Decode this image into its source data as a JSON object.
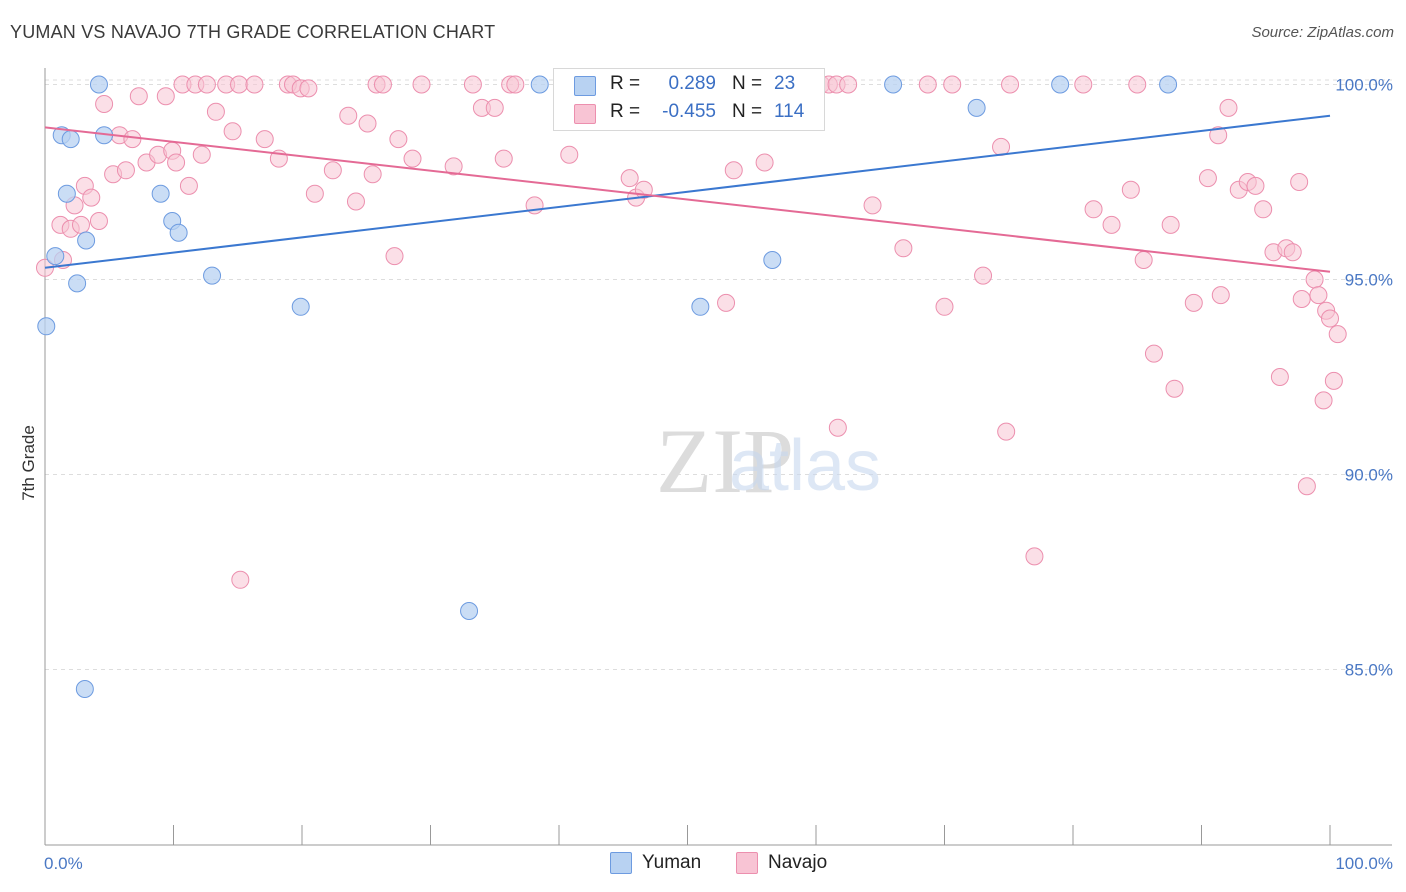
{
  "header": {
    "title": "YUMAN VS NAVAJO 7TH GRADE CORRELATION CHART",
    "source": "Source: ZipAtlas.com"
  },
  "watermark": {
    "zip": "ZIP",
    "atlas": "atlas"
  },
  "colors": {
    "yuman_fill": "#b8d2f2",
    "yuman_stroke": "#6d9be0",
    "yuman_line": "#3b78d0",
    "navajo_fill": "#f8c4d4",
    "navajo_stroke": "#ec8fae",
    "navajo_line": "#e46a95",
    "tick_text": "#4a78c4",
    "grid": "#dddddd"
  },
  "legend": {
    "rows": [
      {
        "series": "Yuman",
        "r_label": "R =",
        "r_value": "0.289",
        "n_label": "N =",
        "n_value": "23"
      },
      {
        "series": "Navajo",
        "r_label": "R =",
        "r_value": "-0.455",
        "n_label": "N =",
        "n_value": "114"
      }
    ]
  },
  "bottom_legend": [
    "Yuman",
    "Navajo"
  ],
  "chart_data": {
    "type": "scatter",
    "title": "YUMAN VS NAVAJO 7TH GRADE CORRELATION CHART",
    "xlabel": "",
    "ylabel": "7th Grade",
    "xlim": [
      0,
      100
    ],
    "ylim": [
      80.5,
      100.5
    ],
    "x_tick_labels": [
      "0.0%",
      "100.0%"
    ],
    "y_ticks": [
      85,
      90,
      95,
      100
    ],
    "y_tick_labels": [
      "85.0%",
      "90.0%",
      "95.0%",
      "100.0%"
    ],
    "grid": "horizontal dashed",
    "legend_position": "top-center",
    "series": [
      {
        "name": "Yuman",
        "R": 0.289,
        "N": 23,
        "trend": {
          "x": [
            0,
            100
          ],
          "y": [
            95.3,
            99.2
          ]
        },
        "points": [
          [
            0.1,
            93.8
          ],
          [
            0.8,
            95.6
          ],
          [
            1.3,
            98.7
          ],
          [
            1.7,
            97.2
          ],
          [
            2.0,
            98.6
          ],
          [
            2.5,
            94.9
          ],
          [
            3.2,
            96.0
          ],
          [
            3.1,
            84.5
          ],
          [
            4.2,
            100.0
          ],
          [
            4.6,
            98.7
          ],
          [
            9.0,
            97.2
          ],
          [
            9.9,
            96.5
          ],
          [
            10.4,
            96.2
          ],
          [
            13.0,
            95.1
          ],
          [
            19.9,
            94.3
          ],
          [
            33.0,
            86.5
          ],
          [
            38.5,
            100.0
          ],
          [
            51.0,
            94.3
          ],
          [
            56.6,
            95.5
          ],
          [
            66.0,
            100.0
          ],
          [
            72.5,
            99.4
          ],
          [
            79.0,
            100.0
          ],
          [
            87.4,
            100.0
          ]
        ]
      },
      {
        "name": "Navajo",
        "R": -0.455,
        "N": 114,
        "trend": {
          "x": [
            0,
            100
          ],
          "y": [
            98.9,
            95.2
          ]
        },
        "points": [
          [
            0.0,
            95.3
          ],
          [
            1.2,
            96.4
          ],
          [
            1.4,
            95.5
          ],
          [
            2.0,
            96.3
          ],
          [
            2.3,
            96.9
          ],
          [
            2.8,
            96.4
          ],
          [
            3.1,
            97.4
          ],
          [
            3.6,
            97.1
          ],
          [
            4.2,
            96.5
          ],
          [
            4.6,
            99.5
          ],
          [
            5.3,
            97.7
          ],
          [
            5.8,
            98.7
          ],
          [
            6.3,
            97.8
          ],
          [
            6.8,
            98.6
          ],
          [
            7.3,
            99.7
          ],
          [
            7.9,
            98.0
          ],
          [
            8.8,
            98.2
          ],
          [
            9.4,
            99.7
          ],
          [
            9.9,
            98.3
          ],
          [
            10.2,
            98.0
          ],
          [
            10.7,
            100.0
          ],
          [
            11.2,
            97.4
          ],
          [
            11.7,
            100.0
          ],
          [
            12.2,
            98.2
          ],
          [
            12.6,
            100.0
          ],
          [
            13.3,
            99.3
          ],
          [
            14.1,
            100.0
          ],
          [
            14.6,
            98.8
          ],
          [
            15.1,
            100.0
          ],
          [
            15.2,
            87.3
          ],
          [
            16.3,
            100.0
          ],
          [
            17.1,
            98.6
          ],
          [
            18.2,
            98.1
          ],
          [
            18.9,
            100.0
          ],
          [
            19.3,
            100.0
          ],
          [
            19.9,
            99.9
          ],
          [
            20.5,
            99.9
          ],
          [
            21.0,
            97.2
          ],
          [
            22.4,
            97.8
          ],
          [
            23.6,
            99.2
          ],
          [
            24.2,
            97.0
          ],
          [
            25.1,
            99.0
          ],
          [
            25.5,
            97.7
          ],
          [
            25.8,
            100.0
          ],
          [
            26.3,
            100.0
          ],
          [
            27.2,
            95.6
          ],
          [
            27.5,
            98.6
          ],
          [
            28.6,
            98.1
          ],
          [
            29.3,
            100.0
          ],
          [
            31.8,
            97.9
          ],
          [
            33.3,
            100.0
          ],
          [
            34.0,
            99.4
          ],
          [
            35.0,
            99.4
          ],
          [
            35.7,
            98.1
          ],
          [
            36.2,
            100.0
          ],
          [
            36.6,
            100.0
          ],
          [
            38.1,
            96.9
          ],
          [
            40.8,
            98.2
          ],
          [
            43.7,
            100.0
          ],
          [
            45.5,
            97.6
          ],
          [
            46.0,
            97.1
          ],
          [
            46.6,
            97.3
          ],
          [
            48.6,
            100.0
          ],
          [
            52.7,
            100.0
          ],
          [
            53.0,
            94.4
          ],
          [
            53.6,
            97.8
          ],
          [
            56.0,
            98.0
          ],
          [
            60.4,
            100.0
          ],
          [
            61.0,
            100.0
          ],
          [
            61.6,
            100.0
          ],
          [
            61.7,
            91.2
          ],
          [
            62.5,
            100.0
          ],
          [
            64.4,
            96.9
          ],
          [
            66.8,
            95.8
          ],
          [
            68.7,
            100.0
          ],
          [
            70.0,
            94.3
          ],
          [
            70.6,
            100.0
          ],
          [
            73.0,
            95.1
          ],
          [
            74.4,
            98.4
          ],
          [
            74.8,
            91.1
          ],
          [
            75.1,
            100.0
          ],
          [
            77.0,
            87.9
          ],
          [
            80.8,
            100.0
          ],
          [
            81.6,
            96.8
          ],
          [
            83.0,
            96.4
          ],
          [
            84.5,
            97.3
          ],
          [
            85.0,
            100.0
          ],
          [
            85.5,
            95.5
          ],
          [
            86.3,
            93.1
          ],
          [
            87.6,
            96.4
          ],
          [
            87.9,
            92.2
          ],
          [
            89.4,
            94.4
          ],
          [
            90.5,
            97.6
          ],
          [
            91.3,
            98.7
          ],
          [
            91.5,
            94.6
          ],
          [
            92.1,
            99.4
          ],
          [
            92.9,
            97.3
          ],
          [
            93.6,
            97.5
          ],
          [
            94.2,
            97.4
          ],
          [
            94.8,
            96.8
          ],
          [
            95.6,
            95.7
          ],
          [
            96.1,
            92.5
          ],
          [
            96.6,
            95.8
          ],
          [
            97.1,
            95.7
          ],
          [
            97.6,
            97.5
          ],
          [
            97.8,
            94.5
          ],
          [
            98.2,
            89.7
          ],
          [
            98.8,
            95.0
          ],
          [
            99.1,
            94.6
          ],
          [
            99.5,
            91.9
          ],
          [
            99.7,
            94.2
          ],
          [
            100.0,
            94.0
          ],
          [
            100.3,
            92.4
          ],
          [
            100.6,
            93.6
          ]
        ]
      }
    ]
  }
}
